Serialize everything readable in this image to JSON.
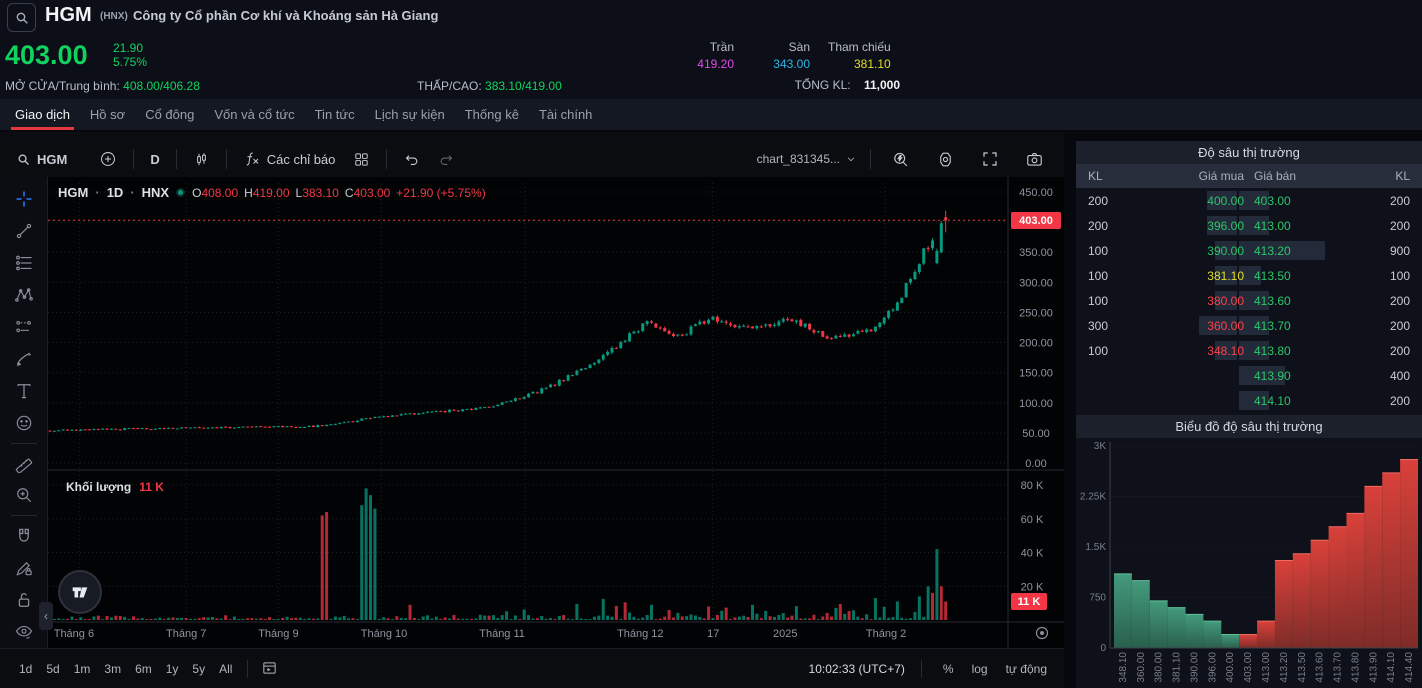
{
  "header": {
    "symbol": "HGM",
    "exchange": "(HNX)",
    "company": "Công ty Cổ phần Cơ khí và Khoáng sản Hà Giang",
    "price": "403.00",
    "change": "21.90",
    "change_pct": "5.75%",
    "open_avg_label": "MỞ CỬA/Trung bình:",
    "open_avg_value": "408.00/406.28",
    "low_high_label": "THẤP/CAO:",
    "low_high_value": "383.10/419.00",
    "ceiling_label": "Trần",
    "ceiling": "419.20",
    "floor_label": "Sàn",
    "floor": "343.00",
    "ref_label": "Tham chiếu",
    "ref": "381.10",
    "total_vol_label": "TỔNG KL:",
    "total_vol": "11,000"
  },
  "tabs": [
    {
      "label": "Giao dịch",
      "active": true
    },
    {
      "label": "Hồ sơ",
      "active": false
    },
    {
      "label": "Cổ đông",
      "active": false
    },
    {
      "label": "Vốn và cổ tức",
      "active": false
    },
    {
      "label": "Tin tức",
      "active": false
    },
    {
      "label": "Lịch sự kiện",
      "active": false
    },
    {
      "label": "Thống kê",
      "active": false
    },
    {
      "label": "Tài chính",
      "active": false
    }
  ],
  "chart_toolbar": {
    "symbol": "HGM",
    "interval": "D",
    "indicators_label": "Các chỉ báo",
    "chart_name": "chart_831345..."
  },
  "legend": {
    "symbol": "HGM",
    "dot": "·",
    "interval": "1D",
    "exchange": "HNX",
    "o_label": "O",
    "o": "408.00",
    "h_label": "H",
    "h": "419.00",
    "l_label": "L",
    "l": "383.10",
    "c_label": "C",
    "c": "403.00",
    "chg": "+21.90 (+5.75%)"
  },
  "volume_pane": {
    "label": "Khối lượng",
    "value": "11 K"
  },
  "axis_tags": {
    "last_price": "403.00",
    "last_volume": "11 K"
  },
  "bottom_toolbar": {
    "ranges": [
      "1d",
      "5d",
      "1m",
      "3m",
      "6m",
      "1y",
      "5y",
      "All"
    ],
    "time": "10:02:33 (UTC+7)",
    "percent": "%",
    "log": "log",
    "auto": "tự động"
  },
  "left_toolbar": [
    "crosshair",
    "trend-line",
    "fib-retracement",
    "xabcd-pattern",
    "forecast",
    "brush",
    "text",
    "emoji",
    "divider",
    "ruler",
    "zoom-in",
    "divider",
    "magnet",
    "drawing-lock",
    "lock",
    "hide-drawings"
  ],
  "order_book": {
    "title": "Độ sâu thị trường",
    "headers": [
      "KL",
      "Giá mua",
      "Giá bán",
      "KL"
    ],
    "rows": [
      {
        "bid_kl": "200",
        "bid": "400.00",
        "bid_color": "up",
        "ask": "403.00",
        "ask_kl": "200"
      },
      {
        "bid_kl": "200",
        "bid": "396.00",
        "bid_color": "up",
        "ask": "413.00",
        "ask_kl": "200"
      },
      {
        "bid_kl": "100",
        "bid": "390.00",
        "bid_color": "up",
        "ask": "413.20",
        "ask_kl": "900"
      },
      {
        "bid_kl": "100",
        "bid": "381.10",
        "bid_color": "ref",
        "ask": "413.50",
        "ask_kl": "100"
      },
      {
        "bid_kl": "100",
        "bid": "380.00",
        "bid_color": "down",
        "ask": "413.60",
        "ask_kl": "200"
      },
      {
        "bid_kl": "300",
        "bid": "360.00",
        "bid_color": "down",
        "ask": "413.70",
        "ask_kl": "200"
      },
      {
        "bid_kl": "100",
        "bid": "348.10",
        "bid_color": "down",
        "ask": "413.80",
        "ask_kl": "200"
      },
      {
        "bid_kl": "",
        "bid": "",
        "bid_color": "up",
        "ask": "413.90",
        "ask_kl": "400"
      },
      {
        "bid_kl": "",
        "bid": "",
        "bid_color": "up",
        "ask": "414.10",
        "ask_kl": "200"
      }
    ]
  },
  "chart_data": [
    {
      "type": "candlestick+volume",
      "symbol": "HGM",
      "interval": "1D",
      "exchange": "HNX",
      "last": {
        "o": 408.0,
        "h": 419.0,
        "l": 383.1,
        "c": 403.0,
        "change": 21.9,
        "change_pct": 5.75
      },
      "ylim": [
        0,
        466
      ],
      "y_ticks": [
        0,
        50,
        100,
        150,
        200,
        250,
        300,
        350,
        400,
        450
      ],
      "volume_y_ticks": [
        20000,
        40000,
        60000,
        80000
      ],
      "last_volume": 11000,
      "x_labels": [
        {
          "label": "Tháng 6",
          "pos": 0.027
        },
        {
          "label": "Tháng 7",
          "pos": 0.144
        },
        {
          "label": "Tháng 9",
          "pos": 0.24
        },
        {
          "label": "Tháng 10",
          "pos": 0.35
        },
        {
          "label": "Tháng 11",
          "pos": 0.473
        },
        {
          "label": "Tháng 12",
          "pos": 0.617
        },
        {
          "label": "17",
          "pos": 0.693
        },
        {
          "label": "2025",
          "pos": 0.768
        },
        {
          "label": "Tháng 2",
          "pos": 0.873
        }
      ],
      "grid_x": [
        0.033,
        0.144,
        0.24,
        0.347,
        0.497,
        0.692,
        0.872
      ],
      "candle_count": 205,
      "range_frac": 0.933,
      "seed": 7,
      "price_anchors": [
        [
          0,
          54
        ],
        [
          0.1,
          57
        ],
        [
          0.17,
          58
        ],
        [
          0.24,
          61
        ],
        [
          0.28,
          59
        ],
        [
          0.32,
          65
        ],
        [
          0.37,
          78
        ],
        [
          0.43,
          84
        ],
        [
          0.47,
          90
        ],
        [
          0.5,
          97
        ],
        [
          0.53,
          110
        ],
        [
          0.56,
          128
        ],
        [
          0.585,
          150
        ],
        [
          0.61,
          170
        ],
        [
          0.635,
          196
        ],
        [
          0.655,
          220
        ],
        [
          0.67,
          235
        ],
        [
          0.685,
          215
        ],
        [
          0.7,
          208
        ],
        [
          0.72,
          225
        ],
        [
          0.735,
          243
        ],
        [
          0.755,
          232
        ],
        [
          0.775,
          224
        ],
        [
          0.8,
          230
        ],
        [
          0.825,
          240
        ],
        [
          0.845,
          228
        ],
        [
          0.865,
          210
        ],
        [
          0.885,
          208
        ],
        [
          0.9,
          215
        ],
        [
          0.915,
          222
        ],
        [
          0.93,
          240
        ],
        [
          0.94,
          258
        ],
        [
          0.95,
          278
        ],
        [
          0.958,
          298
        ],
        [
          0.966,
          322
        ],
        [
          0.974,
          350
        ],
        [
          0.985,
          372
        ],
        [
          0.993,
          400
        ],
        [
          1,
          403
        ]
      ],
      "last_overrides": [
        [
          332,
          356,
          330,
          352
        ],
        [
          350,
          402,
          348,
          398
        ],
        [
          408,
          419,
          383.1,
          403
        ]
      ],
      "volume_spikes": [
        [
          62,
          62000,
          "r"
        ],
        [
          63,
          64000,
          "r"
        ],
        [
          71,
          68000,
          "g"
        ],
        [
          72,
          78000,
          "g"
        ],
        [
          73,
          74000,
          "g"
        ],
        [
          74,
          66000,
          "g"
        ],
        [
          82,
          9000,
          "r"
        ],
        [
          120,
          9500,
          "g"
        ],
        [
          126,
          12500,
          "g"
        ],
        [
          131,
          10500,
          "r"
        ],
        [
          137,
          9000,
          "g"
        ],
        [
          150,
          8000,
          "r"
        ],
        [
          160,
          9000,
          "g"
        ],
        [
          170,
          8200,
          "g"
        ],
        [
          180,
          9500,
          "r"
        ],
        [
          188,
          13000,
          "g"
        ],
        [
          193,
          11000,
          "g"
        ],
        [
          198,
          14000,
          "g"
        ],
        [
          200,
          20000,
          "g"
        ],
        [
          201,
          16000,
          "r"
        ],
        [
          202,
          42000,
          "g"
        ],
        [
          203,
          20000,
          "r"
        ],
        [
          204,
          11000,
          "r"
        ]
      ],
      "colors": {
        "up": "#089981",
        "down": "#f23645",
        "last_price_line": "#f23645"
      }
    },
    {
      "type": "depth",
      "title": "Biểu đồ độ sâu thị trường",
      "y_ticks": [
        0,
        750,
        1500,
        2250,
        3000
      ],
      "y_tick_labels": [
        "0",
        "750",
        "1.5K",
        "2.25K",
        "3K"
      ],
      "x_ticks": [
        "348.10",
        "360.00",
        "380.00",
        "381.10",
        "390.00",
        "396.00",
        "400.00",
        "403.00",
        "413.00",
        "413.20",
        "413.50",
        "413.60",
        "413.70",
        "413.80",
        "413.90",
        "414.10",
        "414.40"
      ],
      "bids_cumulative": [
        1100,
        1000,
        700,
        600,
        500,
        400,
        200
      ],
      "asks_cumulative": [
        200,
        400,
        1300,
        1400,
        1600,
        1800,
        2000,
        2400,
        2600,
        2800
      ],
      "colors": {
        "bid_top": "#449a7c",
        "bid_bottom": "#2a5f4e",
        "ask_top": "#d9413a",
        "ask_bottom": "#7e2c28"
      }
    }
  ]
}
